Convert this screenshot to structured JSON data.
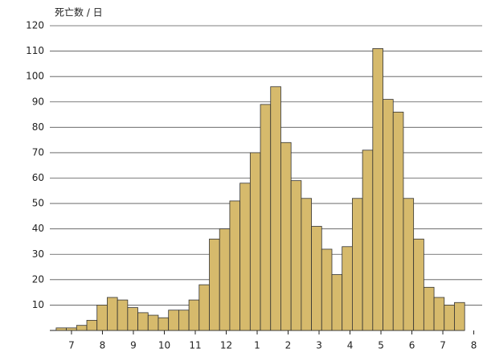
{
  "chart_data": {
    "type": "bar",
    "y_label": "死亡数 / 日",
    "x": [
      7.17,
      7.5,
      7.83,
      8.16,
      8.49,
      8.82,
      9.15,
      9.48,
      9.81,
      10.14,
      10.47,
      10.8,
      11.13,
      11.46,
      11.79,
      12.12,
      12.45,
      12.78,
      13.11,
      13.44,
      13.77,
      14.1,
      14.43,
      14.76,
      15.09,
      15.42,
      15.75,
      16.08,
      16.41,
      16.74,
      17.07,
      17.4,
      17.73,
      18.06,
      18.39,
      18.72,
      19.05,
      19.38,
      19.71,
      20.04
    ],
    "values": [
      1,
      1,
      2,
      4,
      10,
      13,
      12,
      9,
      7,
      6,
      5,
      8,
      8,
      12,
      18,
      36,
      40,
      51,
      58,
      70,
      89,
      96,
      74,
      59,
      52,
      41,
      32,
      22,
      33,
      52,
      71,
      111,
      91,
      86,
      52,
      36,
      17,
      13,
      10,
      11
    ],
    "color": "#d6ba6c",
    "xlim": [
      6.8,
      20.2
    ],
    "xticks": [
      {
        "value": 7.5,
        "label": "7"
      },
      {
        "value": 8.5,
        "label": "8"
      },
      {
        "value": 9.5,
        "label": "9"
      },
      {
        "value": 10.5,
        "label": "10"
      },
      {
        "value": 11.5,
        "label": "11"
      },
      {
        "value": 12.5,
        "label": "12"
      },
      {
        "value": 13.5,
        "label": "1"
      },
      {
        "value": 14.5,
        "label": "2"
      },
      {
        "value": 15.5,
        "label": "3"
      },
      {
        "value": 16.5,
        "label": "4"
      },
      {
        "value": 17.5,
        "label": "5"
      },
      {
        "value": 18.5,
        "label": "6"
      },
      {
        "value": 19.5,
        "label": "7"
      },
      {
        "value": 20.5,
        "label": "8"
      }
    ],
    "ylim": [
      0,
      120
    ],
    "yticks": [
      10,
      20,
      30,
      40,
      50,
      60,
      70,
      80,
      90,
      100,
      110,
      120
    ],
    "grid": true
  }
}
